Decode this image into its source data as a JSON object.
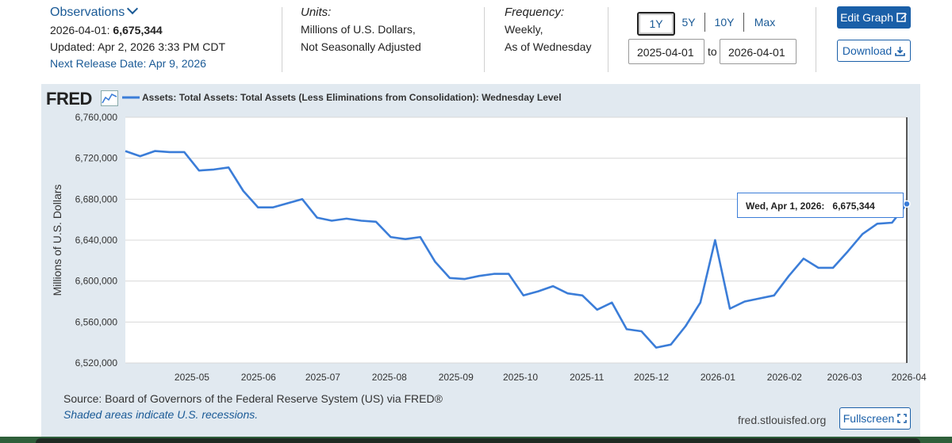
{
  "observations": {
    "title": "Observations",
    "date_label": "2026-04-01:",
    "value": "6,675,344",
    "updated": "Updated: Apr 2, 2026 3:33 PM CDT",
    "next_release": "Next Release Date: Apr 9, 2026"
  },
  "units": {
    "label": "Units:",
    "line1": "Millions of U.S. Dollars,",
    "line2": "Not Seasonally Adjusted"
  },
  "frequency": {
    "label": "Frequency:",
    "line1": "Weekly,",
    "line2": "As of Wednesday"
  },
  "range": {
    "buttons": [
      "1Y",
      "5Y",
      "10Y",
      "Max"
    ],
    "active": "1Y",
    "start": "2025-04-01",
    "to": "to",
    "end": "2026-04-01"
  },
  "actions": {
    "edit_graph": "Edit Graph",
    "download": "Download",
    "fullscreen": "Fullscreen"
  },
  "footer": {
    "source": "Source: Board of Governors of the Federal Reserve System (US) via FRED®",
    "shaded": "Shaded areas indicate U.S. recessions.",
    "site": "fred.stlouisfed.org"
  },
  "logo": "FRED",
  "tooltip": {
    "label": "Wed, Apr 1, 2026:",
    "value": "6,675,344"
  },
  "colors": {
    "line": "#3b7dd8",
    "link": "#1a5a96",
    "button": "#1a5fa8",
    "panel": "#e1e9f0"
  },
  "chart_data": {
    "type": "line",
    "title": "Assets: Total Assets: Total Assets (Less Eliminations from Consolidation): Wednesday Level",
    "xlabel": "",
    "ylabel": "Millions of U.S. Dollars",
    "ylim": [
      6520000,
      6760000
    ],
    "yticks": [
      6520000,
      6560000,
      6600000,
      6640000,
      6680000,
      6720000,
      6760000
    ],
    "ytick_labels": [
      "6,520,000",
      "6,560,000",
      "6,600,000",
      "6,640,000",
      "6,680,000",
      "6,720,000",
      "6,760,000"
    ],
    "xticks": [
      {
        "label": "2025-05",
        "week": 4.43
      },
      {
        "label": "2025-06",
        "week": 8.86
      },
      {
        "label": "2025-07",
        "week": 13.14
      },
      {
        "label": "2025-08",
        "week": 17.57
      },
      {
        "label": "2025-09",
        "week": 22.0
      },
      {
        "label": "2025-10",
        "week": 26.29
      },
      {
        "label": "2025-11",
        "week": 30.71
      },
      {
        "label": "2025-12",
        "week": 35.0
      },
      {
        "label": "2026-01",
        "week": 39.43
      },
      {
        "label": "2026-02",
        "week": 43.86
      },
      {
        "label": "2026-03",
        "week": 47.86
      },
      {
        "label": "2026-04",
        "week": 52.14
      }
    ],
    "x_weeks_range": [
      0,
      52
    ],
    "series": [
      {
        "name": "Assets: Total Assets: Total Assets (Less Eliminations from Consolidation): Wednesday Level",
        "values": [
          6727000,
          6722000,
          6727000,
          6726000,
          6726000,
          6708000,
          6709000,
          6711000,
          6688000,
          6672000,
          6672000,
          6676000,
          6680000,
          6662000,
          6659000,
          6661000,
          6659000,
          6658000,
          6643000,
          6641000,
          6643000,
          6619000,
          6603000,
          6602000,
          6605000,
          6607000,
          6607000,
          6586000,
          6590000,
          6595000,
          6588000,
          6586000,
          6572000,
          6579000,
          6553000,
          6551000,
          6535000,
          6538000,
          6556000,
          6579000,
          6640000,
          6573000,
          6580000,
          6583000,
          6586000,
          6605000,
          6622000,
          6613000,
          6613000,
          6629000,
          6646000,
          6656000,
          6657000,
          6675344
        ]
      }
    ]
  }
}
